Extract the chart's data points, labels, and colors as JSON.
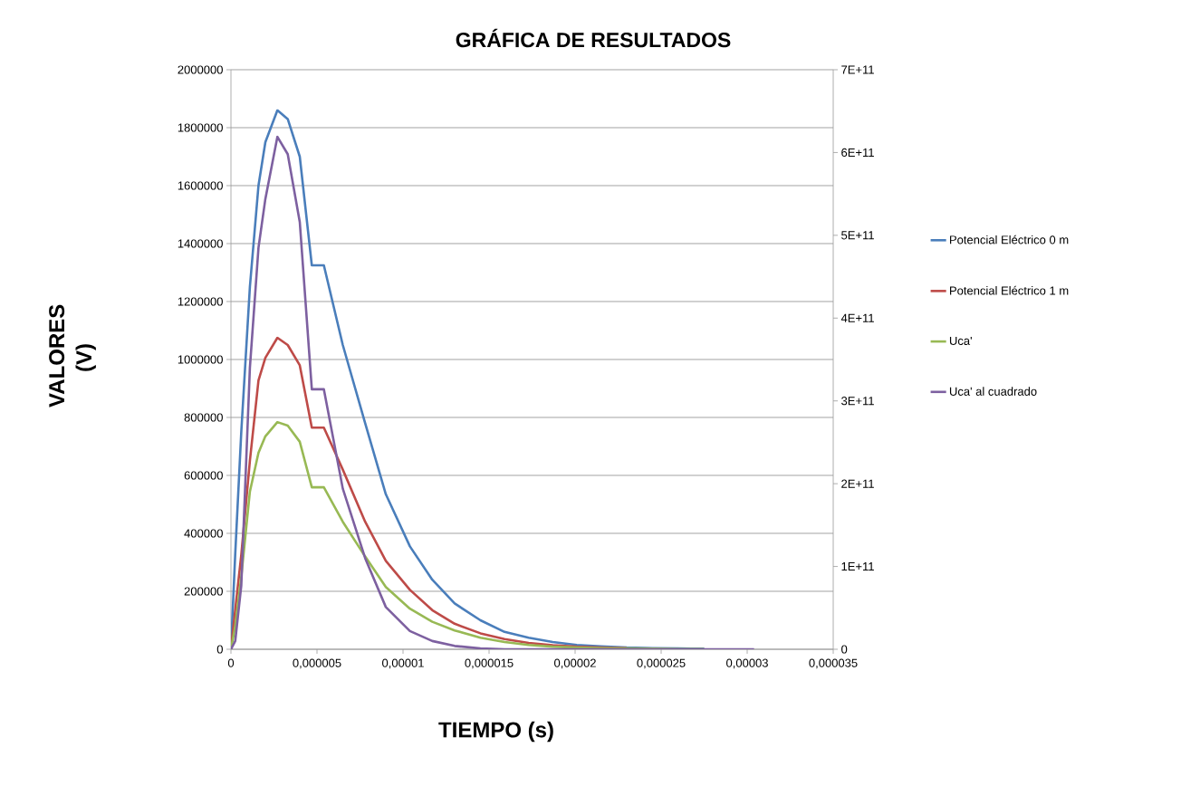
{
  "chart_data": {
    "type": "line",
    "title": "GRÁFICA DE RESULTADOS",
    "xlabel": "TIEMPO (s)",
    "ylabel": "VALORES (V)",
    "x": [
      0,
      2.5e-07,
      6e-07,
      1.1e-06,
      1.6e-06,
      2e-06,
      2.7e-06,
      3.3e-06,
      4e-06,
      4.7e-06,
      5.4e-06,
      6.5e-06,
      7.8e-06,
      9e-06,
      1.04e-05,
      1.17e-05,
      1.3e-05,
      1.45e-05,
      1.59e-05,
      1.73e-05,
      1.87e-05,
      2.01e-05,
      2.15e-05,
      2.3e-05,
      2.45e-05,
      2.6e-05,
      2.75e-05,
      2.9e-05,
      3.04e-05
    ],
    "series": [
      {
        "name": "Potencial Eléctrico 0 m",
        "color": "#4a7ebb",
        "values": [
          0,
          330000,
          750000,
          1250000,
          1600000,
          1750000,
          1860000,
          1830000,
          1700000,
          1325000,
          1325000,
          1050000,
          780000,
          535000,
          355000,
          240000,
          158000,
          100000,
          60000,
          40000,
          25000,
          15000,
          10000,
          6000,
          4000,
          3000,
          2000,
          null,
          null
        ]
      },
      {
        "name": "Potencial Eléctrico 1 m",
        "color": "#be4b48",
        "values": [
          0,
          137000,
          325000,
          650000,
          928000,
          1006000,
          1075000,
          1050000,
          980000,
          765000,
          765000,
          620000,
          440000,
          305000,
          205000,
          135000,
          88000,
          55000,
          35000,
          22000,
          14000,
          9000,
          6000,
          4000,
          null,
          null,
          null,
          null,
          null
        ]
      },
      {
        "name": "Uca'",
        "color": "#98b954",
        "values": [
          0,
          80000,
          250000,
          544000,
          678000,
          735000,
          784000,
          772000,
          716000,
          559000,
          559000,
          440000,
          320000,
          215000,
          140000,
          95000,
          65000,
          40000,
          25000,
          15000,
          9000,
          6000,
          4000,
          3000,
          2000,
          1000,
          1000,
          null,
          null
        ]
      },
      {
        "name": "Uca' al cuadrado",
        "color": "#7d60a0",
        "axis": "y2",
        "values": [
          0,
          10000000000.0,
          77000000000.0,
          340000000000.0,
          485000000000.0,
          544000000000.0,
          619000000000.0,
          598000000000.0,
          516000000000.0,
          314000000000.0,
          314000000000.0,
          194000000000.0,
          110000000000.0,
          51000000000.0,
          22000000000.0,
          10000000000.0,
          4000000000.0,
          1000000000.0,
          0,
          0,
          0,
          0,
          0,
          0,
          0,
          0,
          0,
          0,
          0
        ]
      }
    ],
    "xlim": [
      0,
      3.5e-05
    ],
    "xticks": [
      0,
      {
        "value": 5e-06,
        "label": "0,000005"
      },
      {
        "value": 1e-05,
        "label": "0,00001"
      },
      {
        "value": 1.5e-05,
        "label": "0,000015"
      },
      {
        "value": 2e-05,
        "label": "0,00002"
      },
      {
        "value": 2.5e-05,
        "label": "0,000025"
      },
      {
        "value": 3e-05,
        "label": "0,00003"
      },
      {
        "value": 3.5e-05,
        "label": "0,000035"
      }
    ],
    "ylim": [
      0,
      2000000
    ],
    "yticks": [
      0,
      200000,
      400000,
      600000,
      800000,
      1000000,
      1200000,
      1400000,
      1600000,
      1800000,
      2000000
    ],
    "y2lim": [
      0,
      700000000000.0
    ],
    "y2ticks": [
      0,
      {
        "value": 100000000000.0,
        "label": "1E+11"
      },
      {
        "value": 200000000000.0,
        "label": "2E+11"
      },
      {
        "value": 300000000000.0,
        "label": "3E+11"
      },
      {
        "value": 400000000000.0,
        "label": "4E+11"
      },
      {
        "value": 500000000000.0,
        "label": "5E+11"
      },
      {
        "value": 600000000000.0,
        "label": "6E+11"
      },
      {
        "value": 700000000000.0,
        "label": "7E+11"
      }
    ],
    "grid": "y",
    "legend": "right",
    "marker": "none",
    "line_style": "solid"
  }
}
